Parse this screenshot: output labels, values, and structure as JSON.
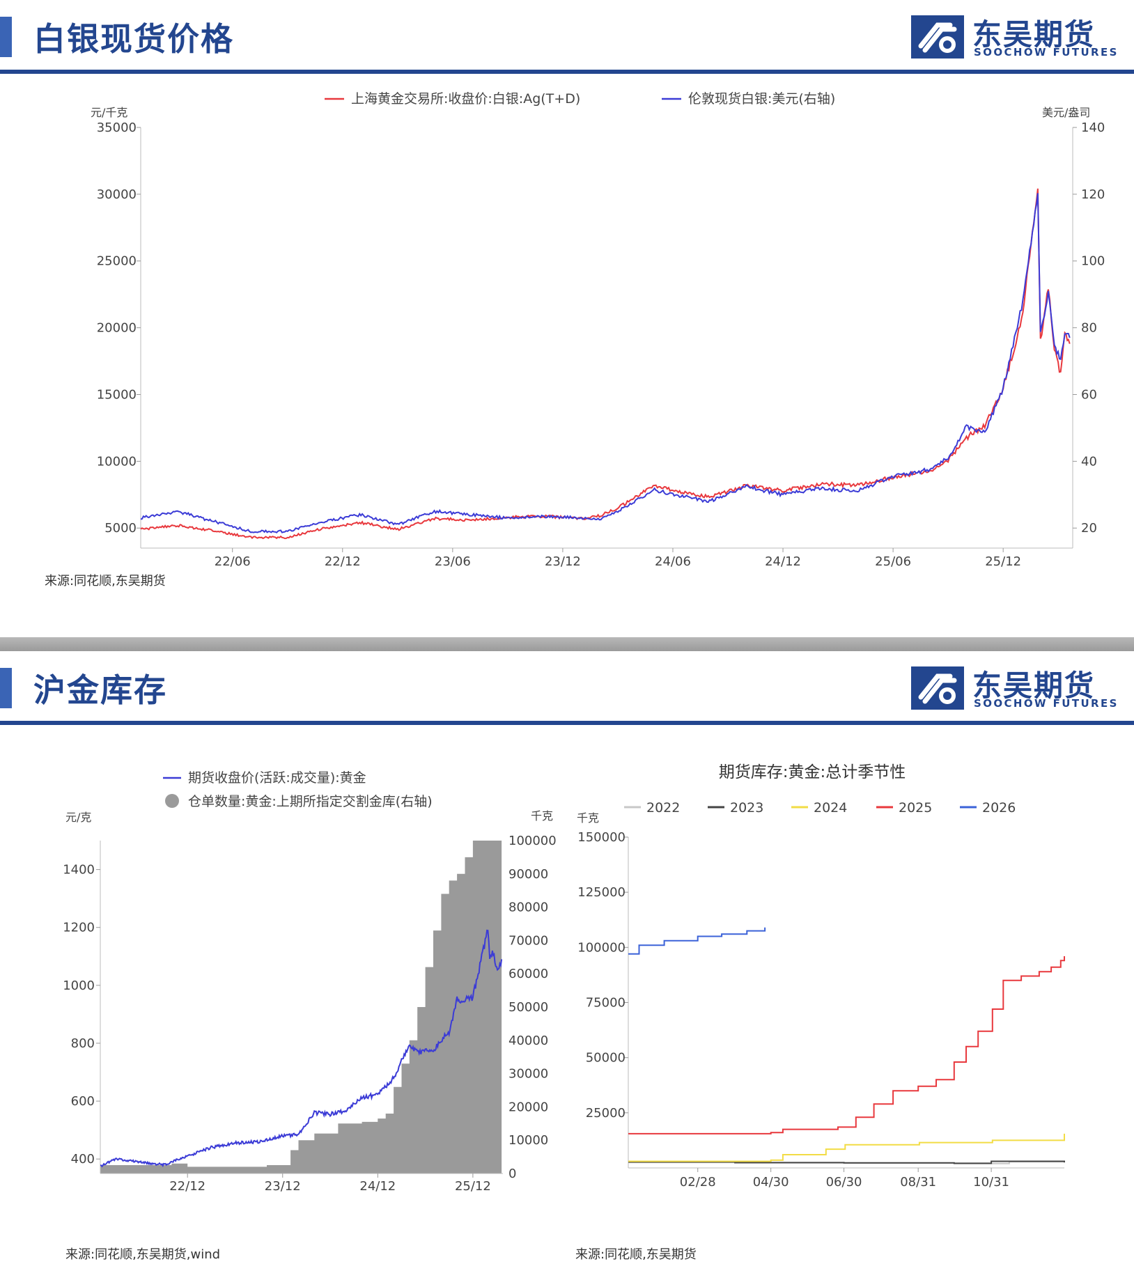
{
  "brand": {
    "name_cn": "东吴期货",
    "name_en": "SOOCHOW FUTURES",
    "accent": "#23468f"
  },
  "panel1": {
    "title": "白银现货价格",
    "source": "来源:同花顺,东吴期货",
    "chart_data": {
      "type": "line",
      "legend": [
        "上海黄金交易所:收盘价:白银:Ag(T+D)",
        "伦敦现货白银:美元(右轴)"
      ],
      "legend_position": "top-center",
      "left_unit": "元/千克",
      "right_unit": "美元/盎司",
      "left_ticks": [
        "35000",
        "30000",
        "25000",
        "20000",
        "15000",
        "10000",
        "5000"
      ],
      "right_ticks": [
        "140",
        "120",
        "100",
        "80",
        "60",
        "40",
        "20"
      ],
      "x_ticks": [
        "22/06",
        "22/12",
        "23/06",
        "23/12",
        "24/06",
        "24/12",
        "25/06",
        "25/12"
      ],
      "ylim_left": [
        3500,
        35000
      ],
      "ylim_right": [
        14,
        140
      ],
      "series": [
        {
          "name": "上海黄金交易所:收盘价:白银:Ag(T+D)",
          "axis": "left",
          "color": "#e8383d",
          "points": [
            [
              "2022-01",
              4900
            ],
            [
              "2022-03",
              5200
            ],
            [
              "2022-05",
              4800
            ],
            [
              "2022-07",
              4300
            ],
            [
              "2022-09",
              4300
            ],
            [
              "2022-11",
              5000
            ],
            [
              "2023-01",
              5400
            ],
            [
              "2023-03",
              4900
            ],
            [
              "2023-05",
              5700
            ],
            [
              "2023-07",
              5600
            ],
            [
              "2023-09",
              5800
            ],
            [
              "2023-11",
              5900
            ],
            [
              "2024-01",
              5700
            ],
            [
              "2024-02",
              5900
            ],
            [
              "2024-03",
              6500
            ],
            [
              "2024-05",
              8200
            ],
            [
              "2024-06",
              7800
            ],
            [
              "2024-08",
              7300
            ],
            [
              "2024-10",
              8200
            ],
            [
              "2024-12",
              7800
            ],
            [
              "2025-02",
              8300
            ],
            [
              "2025-04",
              8200
            ],
            [
              "2025-06",
              8800
            ],
            [
              "2025-08",
              9300
            ],
            [
              "2025-09",
              10100
            ],
            [
              "2025-10",
              11800
            ],
            [
              "2025-11",
              12600
            ],
            [
              "2025-12",
              15500
            ],
            [
              "2026-01",
              20500
            ],
            [
              "2026-01-28",
              30200
            ],
            [
              "2026-02-02",
              19000
            ],
            [
              "2026-02-15",
              23000
            ],
            [
              "2026-02-25",
              18500
            ],
            [
              "2026-03-05",
              16500
            ],
            [
              "2026-03-12",
              19500
            ],
            [
              "2026-03-20",
              18800
            ]
          ]
        },
        {
          "name": "伦敦现货白银:美元(右轴)",
          "axis": "right",
          "color": "#3b3bd6",
          "points": [
            [
              "2022-01",
              23
            ],
            [
              "2022-03",
              25
            ],
            [
              "2022-05",
              22
            ],
            [
              "2022-07",
              19
            ],
            [
              "2022-09",
              19
            ],
            [
              "2022-11",
              22
            ],
            [
              "2023-01",
              24
            ],
            [
              "2023-03",
              21
            ],
            [
              "2023-05",
              25
            ],
            [
              "2023-07",
              24
            ],
            [
              "2023-09",
              23
            ],
            [
              "2023-11",
              23.5
            ],
            [
              "2024-01",
              23
            ],
            [
              "2024-02",
              22.5
            ],
            [
              "2024-03",
              25
            ],
            [
              "2024-05",
              31.5
            ],
            [
              "2024-06",
              30
            ],
            [
              "2024-08",
              28
            ],
            [
              "2024-10",
              32.5
            ],
            [
              "2024-12",
              30
            ],
            [
              "2025-02",
              32
            ],
            [
              "2025-04",
              31
            ],
            [
              "2025-06",
              35.5
            ],
            [
              "2025-08",
              37.5
            ],
            [
              "2025-09",
              41
            ],
            [
              "2025-10",
              50.5
            ],
            [
              "2025-11",
              48.5
            ],
            [
              "2025-12",
              62
            ],
            [
              "2026-01",
              86
            ],
            [
              "2026-01-28",
              120
            ],
            [
              "2026-02-02",
              78
            ],
            [
              "2026-02-15",
              90
            ],
            [
              "2026-02-25",
              75
            ],
            [
              "2026-03-05",
              70
            ],
            [
              "2026-03-12",
              79
            ],
            [
              "2026-03-20",
              77
            ]
          ]
        }
      ]
    }
  },
  "panel2": {
    "title": "沪金库存",
    "left_chart": {
      "source": "来源:同花顺,东吴期货,wind",
      "chart_data": {
        "type": "line",
        "legend": [
          "期货收盘价(活跃:成交量):黄金",
          "仓单数量:黄金:上期所指定交割金库(右轴)"
        ],
        "left_unit": "元/克",
        "right_unit": "千克",
        "left_ticks": [
          "1400",
          "1200",
          "1000",
          "800",
          "600",
          "400"
        ],
        "right_ticks": [
          "100000",
          "90000",
          "80000",
          "70000",
          "60000",
          "50000",
          "40000",
          "30000",
          "20000",
          "10000",
          "0"
        ],
        "x_ticks": [
          "22/12",
          "23/12",
          "24/12",
          "25/12"
        ],
        "ylim_left": [
          350,
          1500
        ],
        "ylim_right": [
          0,
          100000
        ],
        "series": [
          {
            "name": "期货收盘价(活跃:成交量):黄金",
            "axis": "left",
            "type": "line",
            "color": "#3b3bd6",
            "points": [
              [
                "2022-01",
                375
              ],
              [
                "2022-03",
                400
              ],
              [
                "2022-06",
                390
              ],
              [
                "2022-09",
                380
              ],
              [
                "2022-12",
                410
              ],
              [
                "2023-03",
                440
              ],
              [
                "2023-06",
                455
              ],
              [
                "2023-09",
                460
              ],
              [
                "2023-12",
                480
              ],
              [
                "2024-02",
                485
              ],
              [
                "2024-04",
                560
              ],
              [
                "2024-06",
                555
              ],
              [
                "2024-08",
                565
              ],
              [
                "2024-10",
                615
              ],
              [
                "2024-12",
                620
              ],
              [
                "2025-02",
                680
              ],
              [
                "2025-03",
                740
              ],
              [
                "2025-04",
                800
              ],
              [
                "2025-05",
                770
              ],
              [
                "2025-07",
                775
              ],
              [
                "2025-09",
                840
              ],
              [
                "2025-10",
                950
              ],
              [
                "2025-12",
                960
              ],
              [
                "2026-01",
                1080
              ],
              [
                "2026-01-28",
                1200
              ],
              [
                "2026-02-05",
                1080
              ],
              [
                "2026-02-15",
                1130
              ],
              [
                "2026-03-01",
                1060
              ],
              [
                "2026-03-10",
                1050
              ],
              [
                "2026-03-20",
                1090
              ]
            ]
          },
          {
            "name": "仓单数量:黄金:上期所指定交割金库(右轴)",
            "axis": "right",
            "type": "area",
            "color": "#9a9a9a",
            "points": [
              [
                "2022-01",
                2500
              ],
              [
                "2022-06",
                2500
              ],
              [
                "2022-10",
                3000
              ],
              [
                "2022-12",
                2000
              ],
              [
                "2023-06",
                2000
              ],
              [
                "2023-10",
                2500
              ],
              [
                "2023-12",
                2500
              ],
              [
                "2024-01",
                7000
              ],
              [
                "2024-02",
                10000
              ],
              [
                "2024-04",
                12000
              ],
              [
                "2024-07",
                15000
              ],
              [
                "2024-10",
                15500
              ],
              [
                "2024-12",
                16500
              ],
              [
                "2025-01",
                18000
              ],
              [
                "2025-02",
                26000
              ],
              [
                "2025-03",
                33000
              ],
              [
                "2025-04",
                40000
              ],
              [
                "2025-05",
                50000
              ],
              [
                "2025-06",
                62000
              ],
              [
                "2025-07",
                73000
              ],
              [
                "2025-08",
                84000
              ],
              [
                "2025-09",
                88000
              ],
              [
                "2025-10",
                90000
              ],
              [
                "2025-11",
                95000
              ],
              [
                "2025-12",
                100000
              ],
              [
                "2026-03-20",
                100000
              ]
            ]
          }
        ]
      }
    },
    "right_chart": {
      "source": "来源:同花顺,东吴期货",
      "chart_data": {
        "type": "line",
        "title": "期货库存:黄金:总计季节性",
        "left_unit": "千克",
        "y_ticks": [
          "150000",
          "125000",
          "100000",
          "75000",
          "50000",
          "25000"
        ],
        "x_ticks": [
          "02/28",
          "04/30",
          "06/30",
          "08/31",
          "10/31"
        ],
        "ylim": [
          0,
          150000
        ],
        "series": [
          {
            "name": "2022",
            "color": "#c8c8c8",
            "points": [
              [
                "01-01",
                2500
              ],
              [
                "03-31",
                2300
              ],
              [
                "06-30",
                2200
              ],
              [
                "09-30",
                2000
              ],
              [
                "11-15",
                2800
              ],
              [
                "12-31",
                2600
              ]
            ]
          },
          {
            "name": "2023",
            "color": "#444444",
            "points": [
              [
                "01-01",
                2700
              ],
              [
                "03-31",
                2400
              ],
              [
                "06-30",
                2300
              ],
              [
                "09-30",
                2100
              ],
              [
                "10-31",
                3000
              ],
              [
                "12-31",
                2500
              ]
            ]
          },
          {
            "name": "2024",
            "color": "#f2dc45",
            "points": [
              [
                "01-01",
                3000
              ],
              [
                "04-30",
                3500
              ],
              [
                "05-10",
                6000
              ],
              [
                "06-15",
                8500
              ],
              [
                "07-01",
                10500
              ],
              [
                "09-01",
                11500
              ],
              [
                "11-01",
                12500
              ],
              [
                "12-31",
                15500
              ]
            ]
          },
          {
            "name": "2025",
            "color": "#e8383d",
            "points": [
              [
                "01-01",
                15500
              ],
              [
                "04-30",
                16000
              ],
              [
                "05-10",
                17500
              ],
              [
                "06-25",
                18500
              ],
              [
                "07-10",
                23000
              ],
              [
                "07-25",
                29000
              ],
              [
                "08-10",
                35000
              ],
              [
                "08-31",
                37000
              ],
              [
                "09-15",
                40000
              ],
              [
                "09-30",
                48000
              ],
              [
                "10-10",
                55000
              ],
              [
                "10-20",
                62000
              ],
              [
                "11-01",
                72000
              ],
              [
                "11-10",
                85000
              ],
              [
                "11-25",
                87000
              ],
              [
                "12-10",
                89000
              ],
              [
                "12-20",
                91000
              ],
              [
                "12-28",
                94000
              ],
              [
                "12-31",
                96000
              ]
            ]
          },
          {
            "name": "2026",
            "color": "#3b62d8",
            "points": [
              [
                "01-01",
                97000
              ],
              [
                "01-10",
                101000
              ],
              [
                "01-31",
                103000
              ],
              [
                "02-28",
                105000
              ],
              [
                "03-20",
                106000
              ],
              [
                "04-10",
                107500
              ],
              [
                "04-25",
                109000
              ]
            ]
          }
        ]
      }
    }
  }
}
